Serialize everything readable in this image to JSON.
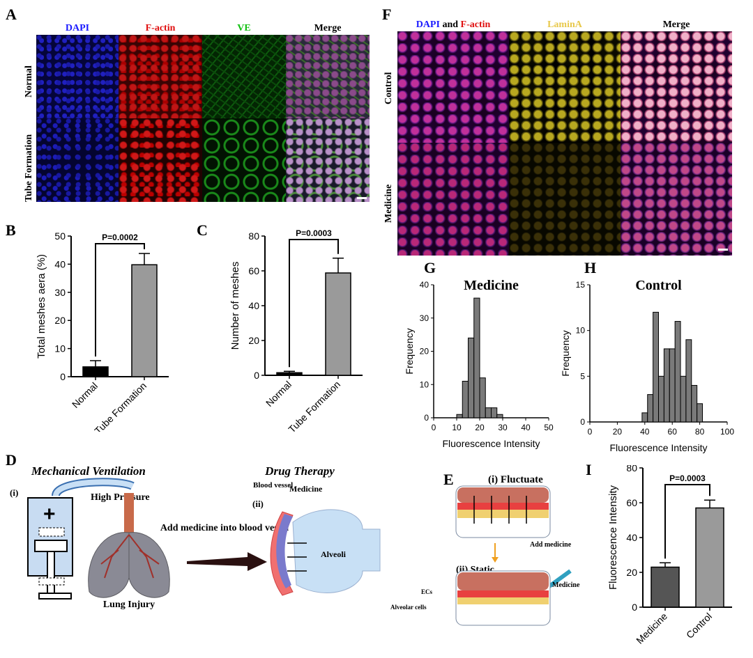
{
  "panels": {
    "A": {
      "letter": "A",
      "columns": [
        "DAPI",
        "F-actin",
        "VE",
        "Merge"
      ],
      "column_colors": [
        "#1a1aff",
        "#e01010",
        "#10c010",
        "#000000"
      ],
      "rows": [
        "Normal",
        "Tube Formation"
      ]
    },
    "B": {
      "letter": "B"
    },
    "C": {
      "letter": "C"
    },
    "D": {
      "letter": "D",
      "left_title": "Mechanical Ventilation",
      "step_i": "(i)",
      "high_pressure": "High Pressure",
      "lung_label": "Lung Injury",
      "arrow_text": "Add medicine into blood vessel",
      "right_title": "Drug Therapy",
      "blood_vessel": "Blood vessel",
      "medicine": "Medicine",
      "step_ii": "(ii)",
      "alveoli": "Alveoli"
    },
    "E": {
      "letter": "E",
      "fluctuate": "(i) Fluctuate",
      "add_medicine": "Add medicine",
      "static": "(ii)  Static",
      "medicine": "Medicine",
      "ecs": "ECs",
      "alveolar": "Alveolar cells"
    },
    "F": {
      "letter": "F",
      "col1_a": "DAPI",
      "col1_and": " and ",
      "col1_b": "F-actin",
      "col2": "LaminA",
      "col3": "Merge",
      "rows": [
        "Control",
        "Medicine"
      ]
    },
    "G": {
      "letter": "G"
    },
    "H": {
      "letter": "H"
    },
    "I": {
      "letter": "I"
    }
  },
  "chart_data": [
    {
      "id": "B",
      "type": "bar",
      "categories": [
        "Normal",
        "Tube Formation"
      ],
      "values": [
        3.5,
        39.8
      ],
      "errors": [
        2.2,
        4.0
      ],
      "colors": [
        "#000000",
        "#9a9a9a"
      ],
      "ylabel": "Total meshes aera (%)",
      "ylim": [
        0,
        50
      ],
      "yticks": [
        0,
        10,
        20,
        30,
        40,
        50
      ],
      "annotation": "P=0.0002"
    },
    {
      "id": "C",
      "type": "bar",
      "categories": [
        "Normal",
        "Tube Formation"
      ],
      "values": [
        1.5,
        58.8
      ],
      "errors": [
        0.8,
        8.5
      ],
      "colors": [
        "#000000",
        "#9a9a9a"
      ],
      "ylabel": "Number of meshes",
      "ylim": [
        0,
        80
      ],
      "yticks": [
        0,
        20,
        40,
        60,
        80
      ],
      "annotation": "P=0.0003"
    },
    {
      "id": "G",
      "type": "bar",
      "title": "Medicine",
      "xlabel": "Fluorescence Intensity",
      "ylabel": "Frequency",
      "bins_start": 10,
      "bin_width": 2.5,
      "values": [
        1,
        11,
        24,
        36,
        12,
        3,
        3,
        1,
        0
      ],
      "xlim": [
        0,
        50
      ],
      "ylim": [
        0,
        40
      ],
      "xticks": [
        0,
        10,
        20,
        30,
        40,
        50
      ],
      "yticks": [
        0,
        10,
        20,
        30,
        40
      ]
    },
    {
      "id": "H",
      "type": "bar",
      "title": "Control",
      "xlabel": "Fluorescence Intensity",
      "ylabel": "Frequency",
      "bins_start": 38,
      "bin_width": 4,
      "values": [
        1,
        3,
        12,
        5,
        8,
        8,
        11,
        5,
        9,
        4,
        2
      ],
      "xlim": [
        0,
        100
      ],
      "ylim": [
        0,
        15
      ],
      "xticks": [
        0,
        20,
        40,
        60,
        80,
        100
      ],
      "yticks": [
        0,
        5,
        10,
        15
      ]
    },
    {
      "id": "I",
      "type": "bar",
      "categories": [
        "Medicine",
        "Control"
      ],
      "values": [
        23,
        57
      ],
      "errors": [
        2.5,
        4.5
      ],
      "colors": [
        "#555555",
        "#9a9a9a"
      ],
      "ylabel": "Fluorescence Intensity",
      "ylim": [
        0,
        80
      ],
      "yticks": [
        0,
        20,
        40,
        60,
        80
      ],
      "annotation": "P=0.0003"
    }
  ]
}
